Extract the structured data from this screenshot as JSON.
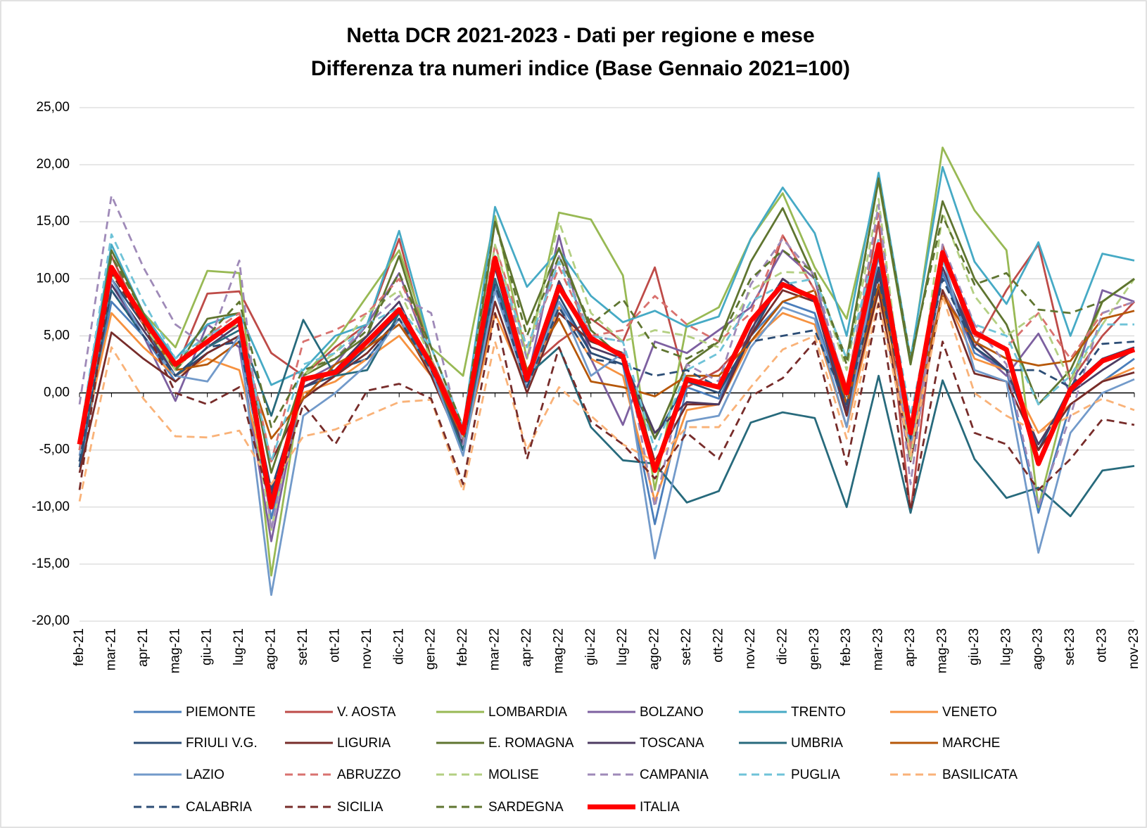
{
  "chart_data": {
    "type": "line",
    "title": "Netta DCR 2021-2023 - Dati per regione e mese",
    "subtitle": "Differenza tra numeri indice (Base Gennaio 2021=100)",
    "categories": [
      "feb-21",
      "mar-21",
      "apr-21",
      "mag-21",
      "giu-21",
      "lug-21",
      "ago-21",
      "set-21",
      "ott-21",
      "nov-21",
      "dic-21",
      "gen-22",
      "feb-22",
      "mar-22",
      "apr-22",
      "mag-22",
      "giu-22",
      "lug-22",
      "ago-22",
      "set-22",
      "ott-22",
      "nov-22",
      "dic-22",
      "gen-23",
      "feb-23",
      "mar-23",
      "apr-23",
      "mag-23",
      "giu-23",
      "lug-23",
      "ago-23",
      "set-23",
      "ott-23",
      "nov-23"
    ],
    "ylim": [
      -20,
      25
    ],
    "yticks": [
      {
        "value": -20,
        "label": "-20,00"
      },
      {
        "value": -15,
        "label": "-15,00"
      },
      {
        "value": -10,
        "label": "-10,00"
      },
      {
        "value": -5,
        "label": "-5,00"
      },
      {
        "value": 0,
        "label": "0,00"
      },
      {
        "value": 5,
        "label": "5,00"
      },
      {
        "value": 10,
        "label": "10,00"
      },
      {
        "value": 15,
        "label": "15,00"
      },
      {
        "value": 20,
        "label": "20,00"
      },
      {
        "value": 25,
        "label": "25,00"
      }
    ],
    "grid": true,
    "legend": "bottom",
    "series": [
      {
        "name": "PIEMONTE",
        "color": "#4a7ebb",
        "dashed": false,
        "values": [
          -6.5,
          8,
          5,
          1,
          3.5,
          5,
          -11,
          1,
          2,
          3,
          6.5,
          2,
          -4.5,
          9.5,
          1,
          8,
          3.5,
          2.5,
          -11.5,
          0.5,
          -0.5,
          5,
          8,
          7,
          -2,
          12,
          -4.5,
          10.5,
          3.5,
          2,
          -10.5,
          -1,
          1,
          3
        ]
      },
      {
        "name": "V. AOSTA",
        "color": "#be4b48",
        "dashed": false,
        "values": [
          -5,
          12,
          6,
          2,
          8.7,
          8.9,
          3.5,
          1.5,
          4,
          6,
          13.5,
          3,
          -3,
          12,
          2,
          4.5,
          6.5,
          4.5,
          11,
          0.5,
          2,
          5,
          13.8,
          9,
          0.5,
          15,
          -10.5,
          13,
          4,
          9,
          13,
          1,
          5,
          8
        ]
      },
      {
        "name": "LOMBARDIA",
        "color": "#98b954",
        "dashed": false,
        "values": [
          -5,
          10.5,
          7,
          4,
          10.7,
          10.5,
          -16,
          1.5,
          4.5,
          8.5,
          12.5,
          4,
          1.5,
          15.5,
          3,
          15.8,
          15.2,
          10.3,
          -8.5,
          6,
          7.5,
          13.5,
          17.5,
          11,
          6.5,
          18.5,
          2.5,
          21.5,
          16,
          12.5,
          -10,
          1,
          8,
          10
        ]
      },
      {
        "name": "BOLZANO",
        "color": "#7d60a0",
        "dashed": false,
        "values": [
          -4,
          9.5,
          5,
          -0.7,
          6,
          4,
          -13,
          1,
          2.5,
          6,
          10.5,
          3,
          -4,
          10,
          1,
          13.8,
          3,
          -2.8,
          4.5,
          3.5,
          5.5,
          7.5,
          12.5,
          10,
          -1,
          10.5,
          -4,
          9,
          4,
          1.5,
          5.2,
          0,
          9,
          8
        ]
      },
      {
        "name": "TRENTO",
        "color": "#46aac5",
        "dashed": false,
        "values": [
          -4,
          13,
          7,
          3,
          6,
          7,
          0.7,
          2,
          5,
          6,
          14.2,
          4,
          -3,
          16.3,
          9.3,
          12.5,
          8.5,
          6.2,
          7.2,
          5.8,
          6.7,
          13.5,
          18,
          14,
          5,
          19.3,
          3,
          19.8,
          11.5,
          7.8,
          13.2,
          5,
          12.2,
          11.6
        ]
      },
      {
        "name": "VENETO",
        "color": "#f69240",
        "dashed": false,
        "values": [
          -5.5,
          7,
          4,
          1.5,
          3,
          2,
          -9,
          0,
          1,
          3,
          5,
          1.5,
          -5,
          7,
          0.5,
          7.5,
          3,
          1.5,
          -9.5,
          -1.5,
          -1,
          4.5,
          7,
          6,
          -3,
          9,
          -5,
          9,
          3,
          2,
          -3.5,
          -1,
          1,
          2.2
        ]
      },
      {
        "name": "FRIULI V.G.",
        "color": "#2c4d75",
        "dashed": false,
        "values": [
          -6.5,
          10,
          6,
          1.5,
          3.5,
          5,
          -8.5,
          0.5,
          1.5,
          4,
          7,
          2,
          -4,
          11,
          1,
          8.5,
          3.5,
          2.5,
          -4,
          1,
          0,
          5,
          10,
          8,
          -1,
          11,
          -4,
          11,
          4,
          2,
          -5,
          0.5,
          3,
          4
        ]
      },
      {
        "name": "LIGURIA",
        "color": "#772c2a",
        "dashed": false,
        "values": [
          -7,
          5.3,
          3,
          1,
          3.5,
          5,
          -6,
          -0.5,
          1.5,
          3.5,
          6.5,
          1.5,
          -5,
          8,
          0,
          7,
          4.5,
          3.5,
          -6,
          -1,
          -1,
          5,
          9,
          8,
          -2,
          9,
          -6,
          9,
          1.7,
          1,
          -5,
          -1,
          1,
          1.8
        ]
      },
      {
        "name": "E. ROMAGNA",
        "color": "#5f7530",
        "dashed": false,
        "values": [
          -5,
          12.5,
          7,
          2,
          6.5,
          7,
          -7,
          1.5,
          3,
          5,
          12,
          3,
          -4.5,
          15,
          6,
          12.7,
          5.5,
          3,
          -4,
          2.5,
          4.5,
          11.5,
          16.2,
          10,
          3,
          18.7,
          2.5,
          16.8,
          10,
          6,
          -1,
          2,
          8,
          10
        ]
      },
      {
        "name": "TOSCANA",
        "color": "#4d3b62",
        "dashed": false,
        "values": [
          -6,
          9.5,
          5.5,
          1.5,
          4,
          6,
          -9,
          0.5,
          2,
          5,
          8,
          2,
          -4.5,
          11,
          1,
          9.8,
          4,
          3,
          -3.5,
          -0.8,
          -1,
          5.5,
          10,
          8,
          -1.5,
          10.5,
          -3.5,
          11,
          4.5,
          2,
          -4.5,
          0,
          2,
          3.8
        ]
      },
      {
        "name": "UMBRIA",
        "color": "#276a7c",
        "dashed": false,
        "values": [
          -6,
          9,
          5,
          1.5,
          4,
          5.5,
          -2,
          6.4,
          1.5,
          2,
          7,
          2,
          -5,
          10,
          1.5,
          4,
          -3,
          -5.9,
          -6.2,
          -9.6,
          -8.6,
          -2.6,
          -1.7,
          -2.2,
          -10,
          1.5,
          -10.5,
          1.1,
          -5.8,
          -9.2,
          -8.3,
          -10.8,
          -6.8,
          -6.4
        ]
      },
      {
        "name": "MARCHE",
        "color": "#b65708",
        "dashed": false,
        "values": [
          -5,
          11,
          6,
          2,
          2.5,
          4.5,
          -4,
          -0.5,
          2.5,
          4,
          6,
          2,
          -4,
          12,
          2,
          6.5,
          1,
          0.5,
          -0.3,
          1.5,
          1.5,
          4.5,
          8,
          9,
          -1,
          9.5,
          -3,
          8.5,
          4.5,
          3,
          2.4,
          2.8,
          6.5,
          7.2
        ]
      },
      {
        "name": "LAZIO",
        "color": "#729aca",
        "dashed": false,
        "values": [
          -5.5,
          10,
          5,
          1.5,
          1,
          5,
          -17.7,
          -2,
          0,
          2.5,
          6.5,
          2,
          -5.5,
          9,
          0.5,
          8,
          1.5,
          3.5,
          -14.5,
          -2.5,
          -2,
          4,
          7.5,
          6.5,
          -3,
          12.5,
          -5,
          12,
          2,
          1,
          -14,
          -3.5,
          0,
          1.2
        ]
      },
      {
        "name": "ABRUZZO",
        "color": "#d9726f",
        "dashed": true,
        "values": [
          -5,
          11,
          6,
          2.5,
          5,
          7,
          -6,
          4.5,
          5.5,
          7,
          10,
          4,
          -3,
          13,
          4,
          11,
          5,
          5.5,
          8.5,
          6,
          4.5,
          7,
          13.8,
          9,
          0.5,
          16,
          -5,
          12.5,
          5,
          4,
          7,
          3,
          7,
          8
        ]
      },
      {
        "name": "MOLISE",
        "color": "#b3cf82",
        "dashed": true,
        "values": [
          -4,
          10.5,
          6,
          2,
          5,
          6,
          -12,
          1.5,
          3.5,
          7,
          9,
          3,
          -4,
          13,
          3,
          15,
          7,
          4.5,
          5.5,
          5,
          4,
          9,
          10.6,
          10.5,
          2,
          17,
          -6,
          15.8,
          8.5,
          5,
          7,
          1,
          6,
          10
        ]
      },
      {
        "name": "CAMPANIA",
        "color": "#9f8ab8",
        "dashed": true,
        "values": [
          -1,
          17.3,
          11,
          6,
          4,
          11.6,
          -12,
          2,
          3,
          6,
          8.5,
          7,
          -4.5,
          12,
          3,
          12,
          5,
          4.5,
          -10,
          2.5,
          1,
          9.5,
          13.5,
          10.3,
          0,
          16.5,
          -8,
          13,
          6,
          2.5,
          -10,
          -2,
          7,
          8
        ]
      },
      {
        "name": "PUGLIA",
        "color": "#6fc3d8",
        "dashed": true,
        "values": [
          -4,
          13.9,
          8,
          3,
          5,
          6.5,
          -6,
          2.5,
          3.5,
          6,
          7.5,
          4,
          -3,
          12,
          4,
          11.5,
          5,
          4.5,
          -5,
          2,
          3.5,
          8,
          9.5,
          10,
          3,
          13.5,
          -2,
          11.5,
          6,
          5,
          -1,
          1.5,
          6,
          6
        ]
      },
      {
        "name": "BASILICATA",
        "color": "#f9b278",
        "dashed": true,
        "values": [
          -9.5,
          4,
          -0.5,
          -3.8,
          -3.9,
          -3.3,
          -8,
          -3.8,
          -3.2,
          -2,
          -0.8,
          -0.6,
          -8.6,
          4.5,
          -5,
          0.5,
          -2,
          -4.5,
          -6,
          -3,
          -3,
          0.5,
          3.8,
          5,
          -4,
          8,
          -5.5,
          8.5,
          0,
          -2,
          -3.5,
          -2,
          -0.5,
          -1.5
        ]
      },
      {
        "name": "CALABRIA",
        "color": "#2c4d75",
        "dashed": true,
        "values": [
          -6,
          9,
          5,
          1.5,
          4,
          4.5,
          -9.5,
          1,
          2,
          3,
          6.5,
          2,
          -3.5,
          9.5,
          0.5,
          7.5,
          3,
          2.5,
          1.5,
          2,
          0.5,
          4.5,
          5,
          5.5,
          -1,
          10,
          -3,
          10,
          4,
          2,
          2,
          0.5,
          4.3,
          4.5
        ]
      },
      {
        "name": "SICILIA",
        "color": "#772c2a",
        "dashed": true,
        "values": [
          -8.5,
          10.5,
          6,
          0,
          -1,
          0.5,
          -10,
          -1,
          -4.5,
          0.2,
          0.8,
          -0.5,
          -8,
          7,
          -5.8,
          4,
          -2.5,
          -4.5,
          -7.5,
          -3.5,
          -5.8,
          -0.3,
          1.3,
          4.5,
          -6.3,
          7.8,
          -10.3,
          4.5,
          -3.5,
          -4.5,
          -8.5,
          -5.8,
          -2.3,
          -2.8
        ]
      },
      {
        "name": "SARDEGNA",
        "color": "#5f7530",
        "dashed": true,
        "values": [
          -4,
          12,
          7,
          2,
          5,
          8,
          -3,
          2,
          3,
          5.5,
          10.5,
          4,
          -3,
          15,
          5,
          12,
          6,
          8.2,
          4,
          3,
          4.5,
          10,
          12.5,
          10.5,
          2.5,
          18.8,
          3,
          15.5,
          9.5,
          10.5,
          7.3,
          7,
          8,
          10
        ]
      },
      {
        "name": "ITALIA",
        "color": "#ff0000",
        "dashed": false,
        "bold": true,
        "values": [
          -4.5,
          11,
          6.5,
          2.5,
          4.5,
          6.5,
          -10,
          1.2,
          1.8,
          4.5,
          7.3,
          2.5,
          -3.5,
          11.8,
          1.2,
          9.3,
          4.8,
          3.2,
          -6.8,
          1.2,
          0.5,
          6.3,
          9.5,
          8.3,
          0,
          13,
          -3.5,
          12.3,
          5.3,
          3.8,
          -6.2,
          0.3,
          2.8,
          3.8
        ]
      }
    ]
  }
}
